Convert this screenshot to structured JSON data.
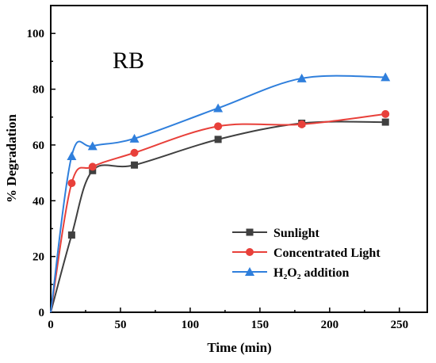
{
  "chart_data": {
    "type": "line",
    "title": "",
    "annotation": "RB",
    "xlabel": "Time (min)",
    "ylabel": "% Degradation",
    "xlim": [
      0,
      270
    ],
    "ylim": [
      0,
      110
    ],
    "xticks": [
      0,
      50,
      100,
      150,
      200,
      250
    ],
    "yticks": [
      0,
      20,
      40,
      60,
      80,
      100
    ],
    "grid": false,
    "legend_position": "bottom-right",
    "series": [
      {
        "name": "Sunlight",
        "marker": "square",
        "color": "#404040",
        "x": [
          0,
          15,
          30,
          60,
          120,
          180,
          240
        ],
        "y": [
          0,
          27.7,
          50.8,
          52.8,
          62.0,
          67.8,
          68.2
        ]
      },
      {
        "name": "Concentrated Light",
        "marker": "circle",
        "color": "#e8403a",
        "x": [
          0,
          15,
          30,
          60,
          120,
          180,
          240
        ],
        "y": [
          0,
          46.3,
          52.2,
          57.2,
          66.7,
          67.4,
          71.1
        ]
      },
      {
        "name": "H₂O₂ addition",
        "marker": "triangle",
        "color": "#2f7fdc",
        "x": [
          0,
          15,
          30,
          60,
          120,
          180,
          240
        ],
        "y": [
          0,
          56.0,
          59.6,
          62.3,
          73.2,
          83.9,
          84.3
        ]
      }
    ]
  }
}
